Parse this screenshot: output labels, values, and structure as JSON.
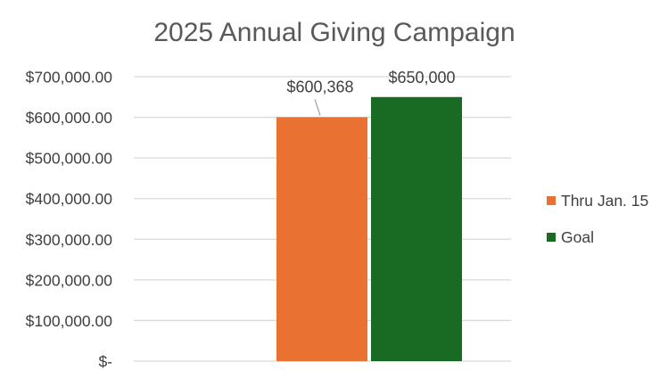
{
  "chart_data": {
    "type": "bar",
    "title": "2025 Annual Giving Campaign",
    "xlabel": "",
    "ylabel": "",
    "categories": [
      ""
    ],
    "series": [
      {
        "name": "Thru Jan. 15",
        "values": [
          600368
        ],
        "label": "$600,368",
        "color": "#E97132"
      },
      {
        "name": "Goal",
        "values": [
          650000
        ],
        "label": "$650,000",
        "color": "#196B24"
      }
    ],
    "ylim": [
      0,
      700000
    ],
    "y_ticks": [
      {
        "value": 0,
        "label": "$-"
      },
      {
        "value": 100000,
        "label": "$100,000.00"
      },
      {
        "value": 200000,
        "label": "$200,000.00"
      },
      {
        "value": 300000,
        "label": "$300,000.00"
      },
      {
        "value": 400000,
        "label": "$400,000.00"
      },
      {
        "value": 500000,
        "label": "$500,000.00"
      },
      {
        "value": 600000,
        "label": "$600,000.00"
      },
      {
        "value": 700000,
        "label": "$700,000.00"
      }
    ],
    "grid": true,
    "legend_position": "right",
    "gridline_color": "#D9D9D9"
  }
}
